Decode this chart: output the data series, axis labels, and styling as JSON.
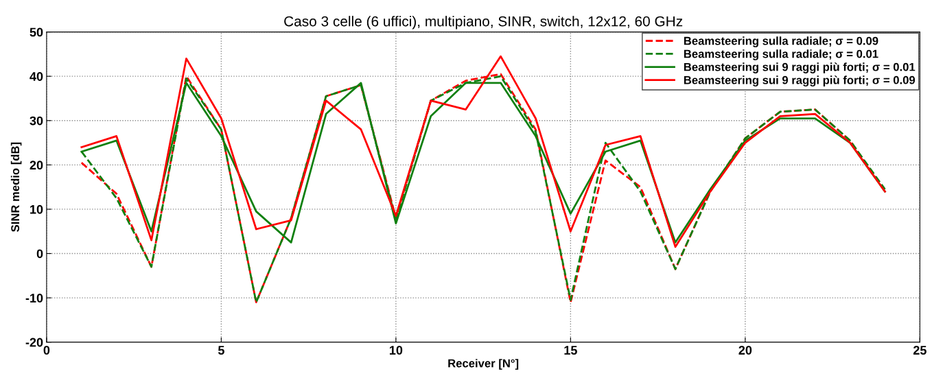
{
  "chart_data": {
    "type": "line",
    "title": "Caso 3 celle (6 uffici), multipiano, SINR, switch, 12x12, 60 GHz",
    "xlabel": "Receiver [N°]",
    "ylabel": "SINR medio [dB]",
    "x": [
      1,
      2,
      3,
      4,
      5,
      6,
      7,
      8,
      9,
      10,
      11,
      12,
      13,
      14,
      15,
      16,
      17,
      18,
      19,
      20,
      21,
      22,
      23,
      24
    ],
    "series": [
      {
        "name": "Beamsteering sulla radiale; σ = 0.09",
        "color": "#ff0000",
        "line_style": "dashed",
        "values": [
          20.5,
          13.5,
          -3,
          40,
          28,
          -11,
          8,
          35.5,
          38,
          8,
          34.5,
          39,
          40.5,
          28,
          -11,
          21,
          15,
          -3.5,
          14,
          26,
          32,
          32.5,
          25.5,
          14
        ]
      },
      {
        "name": "Beamsteering sulla radiale; σ = 0.01",
        "color": "#108010",
        "line_style": "dashed",
        "values": [
          23,
          12.5,
          -3,
          39.5,
          28,
          -11,
          8,
          35.5,
          38,
          7.5,
          34.5,
          38.5,
          40,
          27.5,
          -10.5,
          25,
          14,
          -3.5,
          14,
          26,
          32,
          32.5,
          25.5,
          14.5
        ]
      },
      {
        "name": "Beamsteering sui 9 raggi più forti; σ = 0.01",
        "color": "#108010",
        "line_style": "solid",
        "values": [
          23,
          25.5,
          5,
          38.5,
          26.5,
          9.5,
          2.5,
          31.5,
          38.5,
          6.8,
          31,
          38.5,
          38.5,
          26.5,
          9,
          23,
          25.5,
          2.5,
          14.5,
          25.5,
          30.5,
          30.5,
          25,
          14
        ]
      },
      {
        "name": "Beamsteering sui 9 raggi più forti; σ = 0.09",
        "color": "#ff0000",
        "line_style": "solid",
        "values": [
          24,
          26.5,
          3,
          44,
          30.5,
          5.5,
          7.5,
          34.5,
          28,
          8.5,
          34.5,
          32.5,
          44.5,
          30.5,
          5,
          24.5,
          26.5,
          1.5,
          14,
          25,
          31,
          31.5,
          25,
          14
        ]
      }
    ],
    "xlim": [
      0,
      25
    ],
    "xticks": [
      0,
      5,
      10,
      15,
      20,
      25
    ],
    "ylim": [
      -20,
      50
    ],
    "yticks": [
      -20,
      -10,
      0,
      10,
      20,
      30,
      40,
      50
    ],
    "grid": true,
    "legend": "top right",
    "marker": "none"
  }
}
